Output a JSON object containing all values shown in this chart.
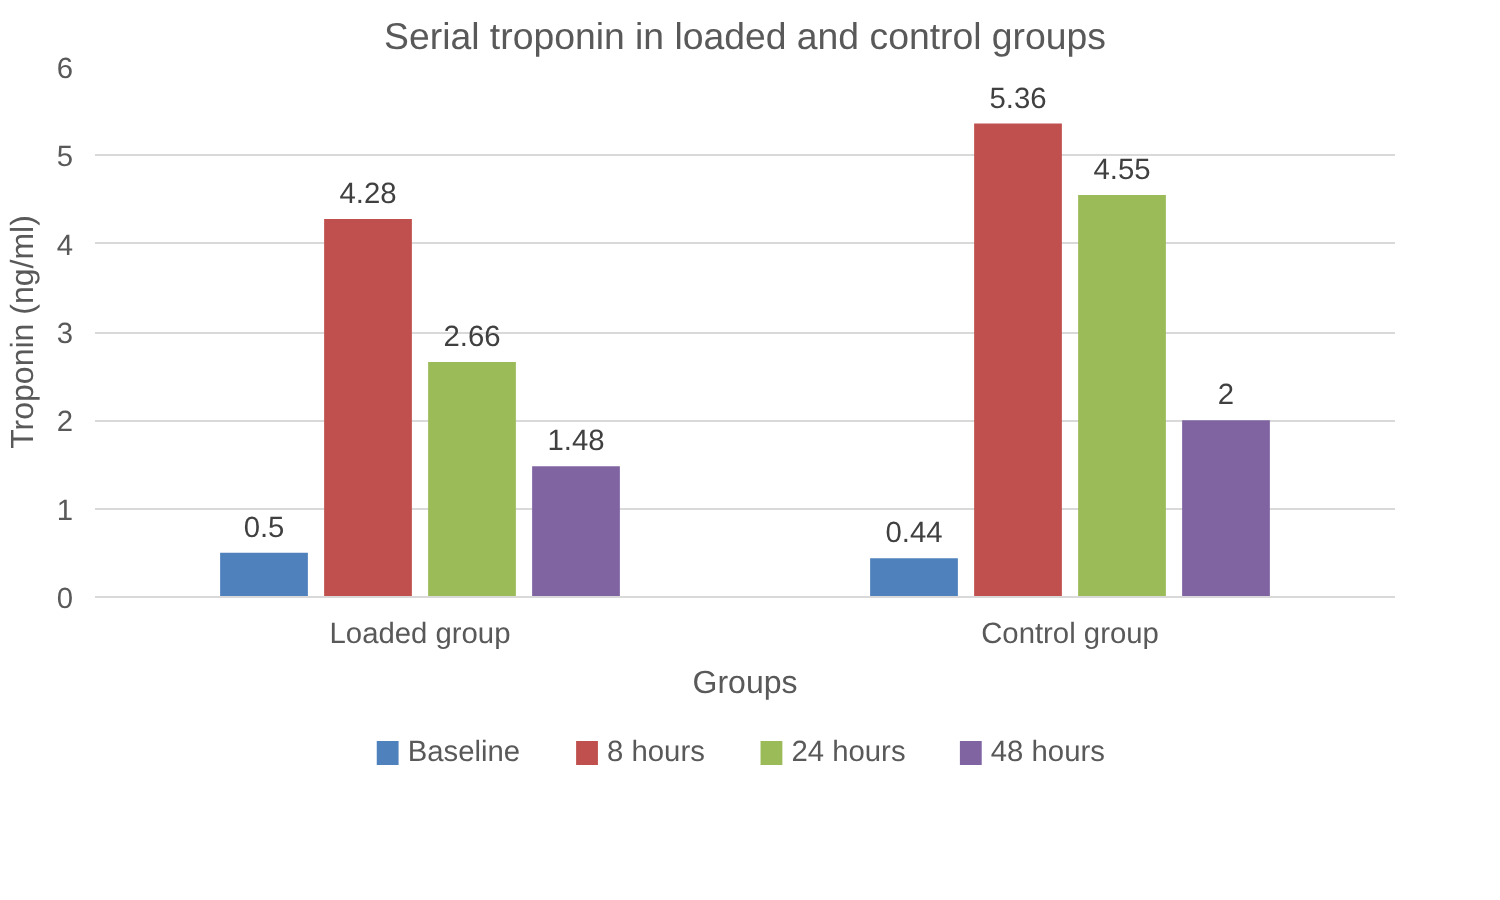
{
  "chart_data": {
    "type": "bar",
    "title": "Serial troponin in loaded and control groups",
    "xlabel": "Groups",
    "ylabel": "Troponin (ng/ml)",
    "categories": [
      "Loaded group",
      "Control group"
    ],
    "series": [
      {
        "name": "Baseline",
        "color": "#4f81bd",
        "values": [
          0.5,
          0.44
        ]
      },
      {
        "name": "8 hours",
        "color": "#c0504d",
        "values": [
          4.28,
          5.36
        ]
      },
      {
        "name": "24 hours",
        "color": "#9bbb59",
        "values": [
          2.66,
          4.55
        ]
      },
      {
        "name": "48 hours",
        "color": "#8064a2",
        "values": [
          1.48,
          2
        ]
      }
    ],
    "ylim": [
      0,
      6
    ],
    "yticks": [
      0,
      1,
      2,
      3,
      4,
      5,
      6
    ],
    "grid": "y",
    "legend": "bottom",
    "data_labels": true
  }
}
